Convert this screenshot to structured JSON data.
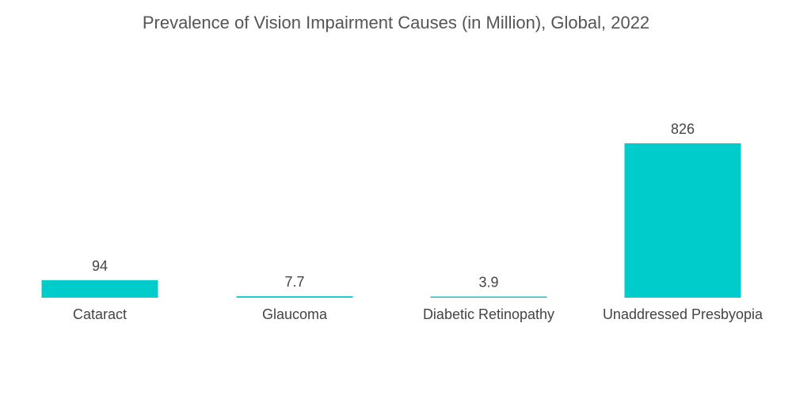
{
  "chart_data": {
    "type": "bar",
    "title": "Prevalence of Vision Impairment Causes (in Million), Global, 2022",
    "categories": [
      "Cataract",
      "Glaucoma",
      "Diabetic Retinopathy",
      "Unaddressed Presbyopia"
    ],
    "values": [
      94,
      7.7,
      3.9,
      826
    ],
    "value_labels": [
      "94",
      "7.7",
      "3.9",
      "826"
    ],
    "xlabel": "",
    "ylabel": "",
    "ylim": [
      0,
      826
    ],
    "grid": false,
    "legend": "none",
    "bar_color": "#00cccc"
  }
}
